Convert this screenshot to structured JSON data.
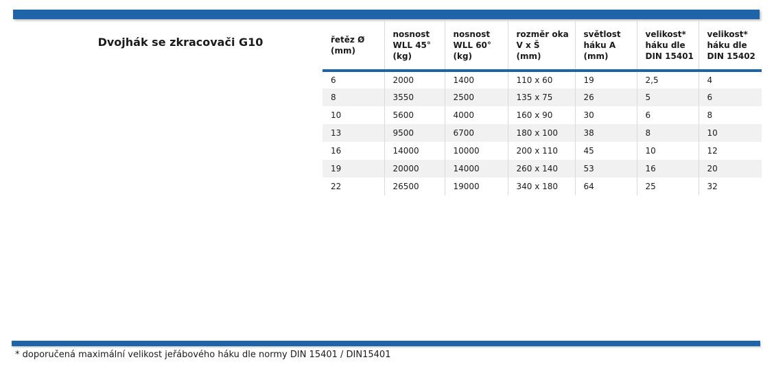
{
  "page": {
    "title": "Dvojhák se zkracovači G10",
    "footnote": "* doporučená maximální velikost jeřábového háku dle normy DIN 15401 / DIN15401"
  },
  "colors": {
    "accent_blue": "#1f63a8",
    "row_stripe": "#f0f1f0",
    "grid_line": "#d9d9d9",
    "text": "#1a1a1a",
    "background": "#ffffff"
  },
  "table": {
    "columns": [
      {
        "label": "řetěz Ø\n(mm)"
      },
      {
        "label": "nosnost\nWLL 45°\n(kg)"
      },
      {
        "label": "nosnost\nWLL 60°\n(kg)"
      },
      {
        "label": "rozměr oka\nV x Š\n(mm)"
      },
      {
        "label": "světlost\nháku A\n(mm)"
      },
      {
        "label": "velikost*\nháku dle\nDIN 15401"
      },
      {
        "label": "velikost*\nháku dle\nDIN 15402"
      }
    ],
    "rows": [
      [
        "6",
        "2000",
        "1400",
        "110 x 60",
        "19",
        "2,5",
        "4"
      ],
      [
        "8",
        "3550",
        "2500",
        "135 x 75",
        "26",
        "5",
        "6"
      ],
      [
        "10",
        "5600",
        "4000",
        "160 x 90",
        "30",
        "6",
        "8"
      ],
      [
        "13",
        "9500",
        "6700",
        "180 x 100",
        "38",
        "8",
        "10"
      ],
      [
        "16",
        "14000",
        "10000",
        "200 x 110",
        "45",
        "10",
        "12"
      ],
      [
        "19",
        "20000",
        "14000",
        "260 x 140",
        "53",
        "16",
        "20"
      ],
      [
        "22",
        "26500",
        "19000",
        "340 x 180",
        "64",
        "25",
        "32"
      ]
    ]
  }
}
